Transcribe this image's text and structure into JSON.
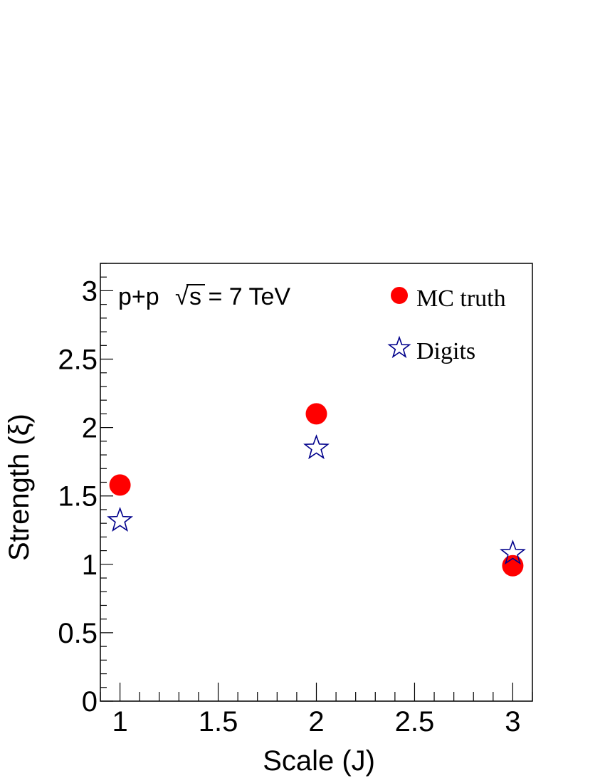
{
  "chart_data": {
    "type": "scatter",
    "xlabel": "Scale (J)",
    "ylabel": "Strength (ξ)",
    "xlim": [
      0.9,
      3.1
    ],
    "ylim": [
      0,
      3.2
    ],
    "x_ticks": [
      "1",
      "1.5",
      "2",
      "2.5",
      "3"
    ],
    "y_ticks": [
      "0",
      "0.5",
      "1",
      "1.5",
      "2",
      "2.5",
      "3"
    ],
    "annotation": {
      "prefix": "p+p",
      "sqrt_symbol": "√",
      "text": "s = 7 TeV"
    },
    "legend_position": "top-right",
    "series": [
      {
        "name": "MC truth",
        "marker": "filled-circle",
        "color": "#ff0000",
        "x": [
          1,
          2,
          3
        ],
        "y": [
          1.58,
          2.1,
          0.99
        ]
      },
      {
        "name": "Digits",
        "marker": "open-star",
        "color": "#00008b",
        "x": [
          1,
          2,
          3
        ],
        "y": [
          1.32,
          1.85,
          1.08
        ]
      }
    ]
  }
}
